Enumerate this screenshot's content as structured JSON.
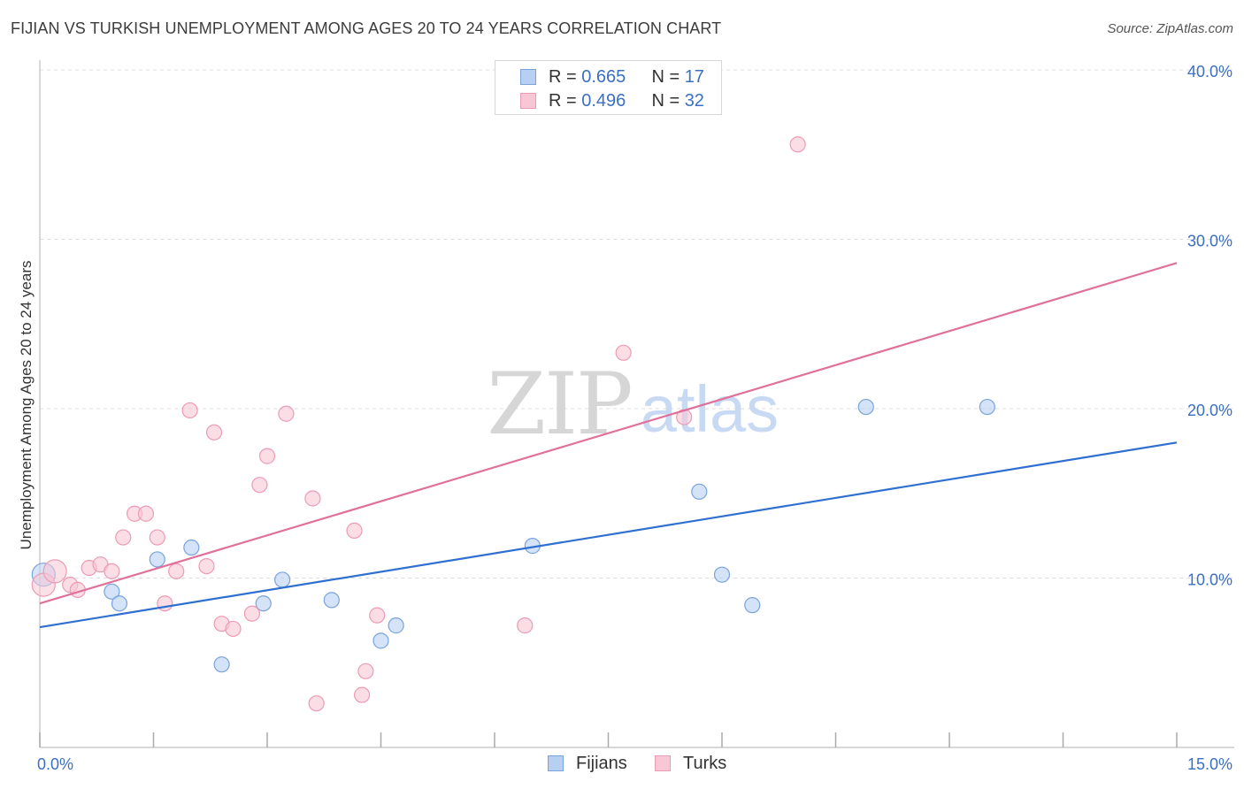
{
  "title": "FIJIAN VS TURKISH UNEMPLOYMENT AMONG AGES 20 TO 24 YEARS CORRELATION CHART",
  "source": "Source: ZipAtlas.com",
  "watermark": {
    "zip": "ZIP",
    "atlas": "atlas"
  },
  "legend_top": [
    {
      "r_label": "R = ",
      "r_value": "0.665",
      "n_label": "N = ",
      "n_value": "17"
    },
    {
      "r_label": "R = ",
      "r_value": "0.496",
      "n_label": "N = ",
      "n_value": "32"
    }
  ],
  "legend_bottom": {
    "fijians": "Fijians",
    "turks": "Turks"
  },
  "colors": {
    "fijian_fill": "#b7d0f2",
    "fijian_stroke": "#7aa3dc",
    "fijian_line": "#2f6fd0",
    "turk_fill": "#f8c6d5",
    "turk_stroke": "#ec9bb5",
    "turk_line": "#e0709a",
    "tick_label": "#3a6fc4",
    "grid": "#dddddd"
  },
  "chart_data": {
    "type": "scatter",
    "title": "FIJIAN VS TURKISH UNEMPLOYMENT AMONG AGES 20 TO 24 YEARS CORRELATION CHART",
    "xlabel": "",
    "ylabel": "Unemployment Among Ages 20 to 24 years",
    "xlim": [
      0,
      15
    ],
    "ylim": [
      0,
      40
    ],
    "x_tick_labels": [
      {
        "value": 0,
        "label": "0.0%"
      },
      {
        "value": 15,
        "label": "15.0%"
      }
    ],
    "x_minor_ticks": [
      1.5,
      3.0,
      4.5,
      6.0,
      7.5,
      9.0,
      10.5,
      12.0,
      13.5
    ],
    "y_ticks": [
      {
        "value": 10,
        "label": "10.0%"
      },
      {
        "value": 20,
        "label": "20.0%"
      },
      {
        "value": 30,
        "label": "30.0%"
      },
      {
        "value": 40,
        "label": "40.0%"
      }
    ],
    "grid": true,
    "series": [
      {
        "name": "Fijians",
        "points": [
          [
            0.05,
            10.2
          ],
          [
            0.95,
            9.2
          ],
          [
            1.05,
            8.5
          ],
          [
            1.55,
            11.1
          ],
          [
            2.0,
            11.8
          ],
          [
            2.4,
            4.9
          ],
          [
            2.95,
            8.5
          ],
          [
            3.2,
            9.9
          ],
          [
            3.85,
            8.7
          ],
          [
            4.5,
            6.3
          ],
          [
            4.7,
            7.2
          ],
          [
            6.5,
            11.9
          ],
          [
            8.7,
            15.1
          ],
          [
            9.0,
            10.2
          ],
          [
            9.4,
            8.4
          ],
          [
            10.9,
            20.1
          ],
          [
            12.5,
            20.1
          ]
        ],
        "big_points": [
          [
            0.05,
            10.2
          ]
        ],
        "trend": {
          "x": [
            0,
            15
          ],
          "y": [
            7.1,
            18.0
          ]
        }
      },
      {
        "name": "Turks",
        "points": [
          [
            0.05,
            9.6
          ],
          [
            0.2,
            10.4
          ],
          [
            0.4,
            9.6
          ],
          [
            0.5,
            9.3
          ],
          [
            0.65,
            10.6
          ],
          [
            0.8,
            10.8
          ],
          [
            0.95,
            10.4
          ],
          [
            1.1,
            12.4
          ],
          [
            1.25,
            13.8
          ],
          [
            1.4,
            13.8
          ],
          [
            1.55,
            12.4
          ],
          [
            1.65,
            8.5
          ],
          [
            1.8,
            10.4
          ],
          [
            1.98,
            19.9
          ],
          [
            2.2,
            10.7
          ],
          [
            2.3,
            18.6
          ],
          [
            2.4,
            7.3
          ],
          [
            2.55,
            7.0
          ],
          [
            2.8,
            7.9
          ],
          [
            2.9,
            15.5
          ],
          [
            3.0,
            17.2
          ],
          [
            3.25,
            19.7
          ],
          [
            3.6,
            14.7
          ],
          [
            3.65,
            2.6
          ],
          [
            4.15,
            12.8
          ],
          [
            4.25,
            3.1
          ],
          [
            4.3,
            4.5
          ],
          [
            4.45,
            7.8
          ],
          [
            6.4,
            7.2
          ],
          [
            7.7,
            23.3
          ],
          [
            8.5,
            19.5
          ],
          [
            10.0,
            35.6
          ]
        ],
        "big_points": [
          [
            0.05,
            9.6
          ],
          [
            0.2,
            10.4
          ]
        ],
        "trend": {
          "x": [
            0,
            15
          ],
          "y": [
            8.5,
            28.6
          ]
        }
      }
    ]
  }
}
